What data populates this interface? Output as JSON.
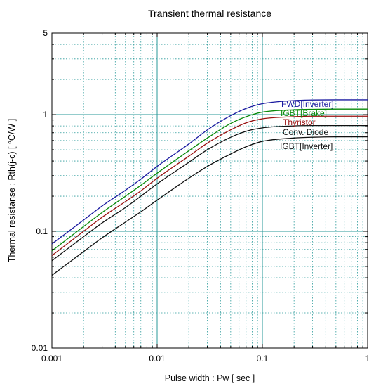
{
  "chart_data": {
    "type": "line",
    "title": "Transient thermal resistance",
    "xlabel": "Pulse width : Pw [ sec ]",
    "ylabel": "Thermal resistanse : Rth(j-c) [ °C/W ]",
    "x_scale": "log",
    "y_scale": "log",
    "xlim": [
      0.001,
      1
    ],
    "ylim": [
      0.01,
      5
    ],
    "x_ticks": [
      {
        "value": 0.001,
        "label": "0.001"
      },
      {
        "value": 0.01,
        "label": "0.01"
      },
      {
        "value": 0.1,
        "label": "0.1"
      },
      {
        "value": 1,
        "label": "1"
      }
    ],
    "y_ticks": [
      {
        "value": 0.01,
        "label": "0.01"
      },
      {
        "value": 0.1,
        "label": "0.1"
      },
      {
        "value": 1,
        "label": "1"
      },
      {
        "value": 5,
        "label": "5"
      }
    ],
    "grid": true,
    "x": [
      0.001,
      0.002,
      0.003,
      0.005,
      0.007,
      0.01,
      0.02,
      0.03,
      0.05,
      0.07,
      0.1,
      0.2,
      0.3,
      0.5,
      0.7,
      1
    ],
    "series": [
      {
        "name": "FWD[Inverter]",
        "color": "#1a1aa0",
        "values": [
          0.078,
          0.125,
          0.165,
          0.225,
          0.28,
          0.36,
          0.56,
          0.74,
          0.98,
          1.13,
          1.24,
          1.32,
          1.335,
          1.34,
          1.34,
          1.34
        ]
      },
      {
        "name": "IGBT[Brake]",
        "color": "#0a8a0a",
        "values": [
          0.068,
          0.11,
          0.145,
          0.2,
          0.248,
          0.315,
          0.49,
          0.63,
          0.84,
          0.96,
          1.05,
          1.1,
          1.11,
          1.115,
          1.115,
          1.115
        ]
      },
      {
        "name": "Thyristor",
        "color": "#9a1010",
        "values": [
          0.062,
          0.1,
          0.132,
          0.18,
          0.222,
          0.285,
          0.44,
          0.57,
          0.74,
          0.85,
          0.92,
          0.96,
          0.97,
          0.97,
          0.97,
          0.97
        ]
      },
      {
        "name": "Conv. Diode",
        "color": "#111111",
        "values": [
          0.056,
          0.09,
          0.118,
          0.16,
          0.2,
          0.255,
          0.39,
          0.5,
          0.64,
          0.72,
          0.77,
          0.8,
          0.805,
          0.805,
          0.805,
          0.805
        ]
      },
      {
        "name": "IGBT[Inverter]",
        "color": "#111111",
        "values": [
          0.042,
          0.067,
          0.088,
          0.12,
          0.147,
          0.185,
          0.285,
          0.36,
          0.46,
          0.53,
          0.59,
          0.63,
          0.64,
          0.645,
          0.645,
          0.645
        ]
      }
    ],
    "legend": "inline-labels"
  }
}
